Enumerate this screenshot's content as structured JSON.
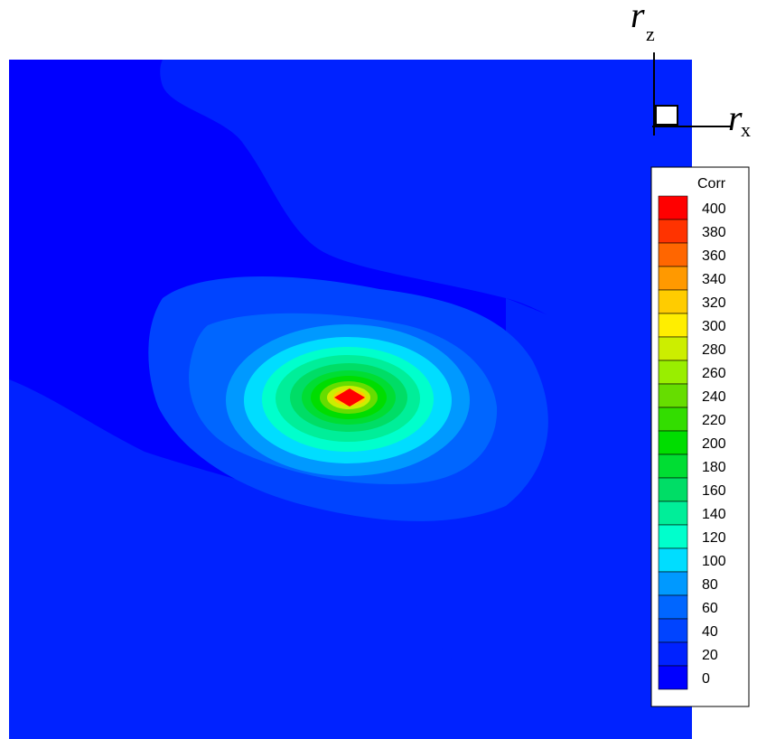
{
  "chart_data": {
    "type": "heatmap",
    "title": "",
    "legend": {
      "title": "Corr",
      "placement": "right",
      "levels": [
        0,
        20,
        40,
        60,
        80,
        100,
        120,
        140,
        160,
        180,
        200,
        220,
        240,
        260,
        280,
        300,
        320,
        340,
        360,
        380,
        400
      ],
      "colors": [
        "#0000ff",
        "#0022ff",
        "#0044ff",
        "#0066ff",
        "#0099ff",
        "#00ddff",
        "#00ffcc",
        "#00ee99",
        "#00dd66",
        "#00dd33",
        "#00dd00",
        "#33dd00",
        "#66dd00",
        "#99ee00",
        "#ccee00",
        "#ffee00",
        "#ffcc00",
        "#ff9900",
        "#ff6600",
        "#ff3300",
        "#ff0000"
      ]
    },
    "axes": {
      "x_label": "r",
      "x_subscript": "x",
      "z_label": "r",
      "z_subscript": "z"
    },
    "peak_value": 400
  }
}
